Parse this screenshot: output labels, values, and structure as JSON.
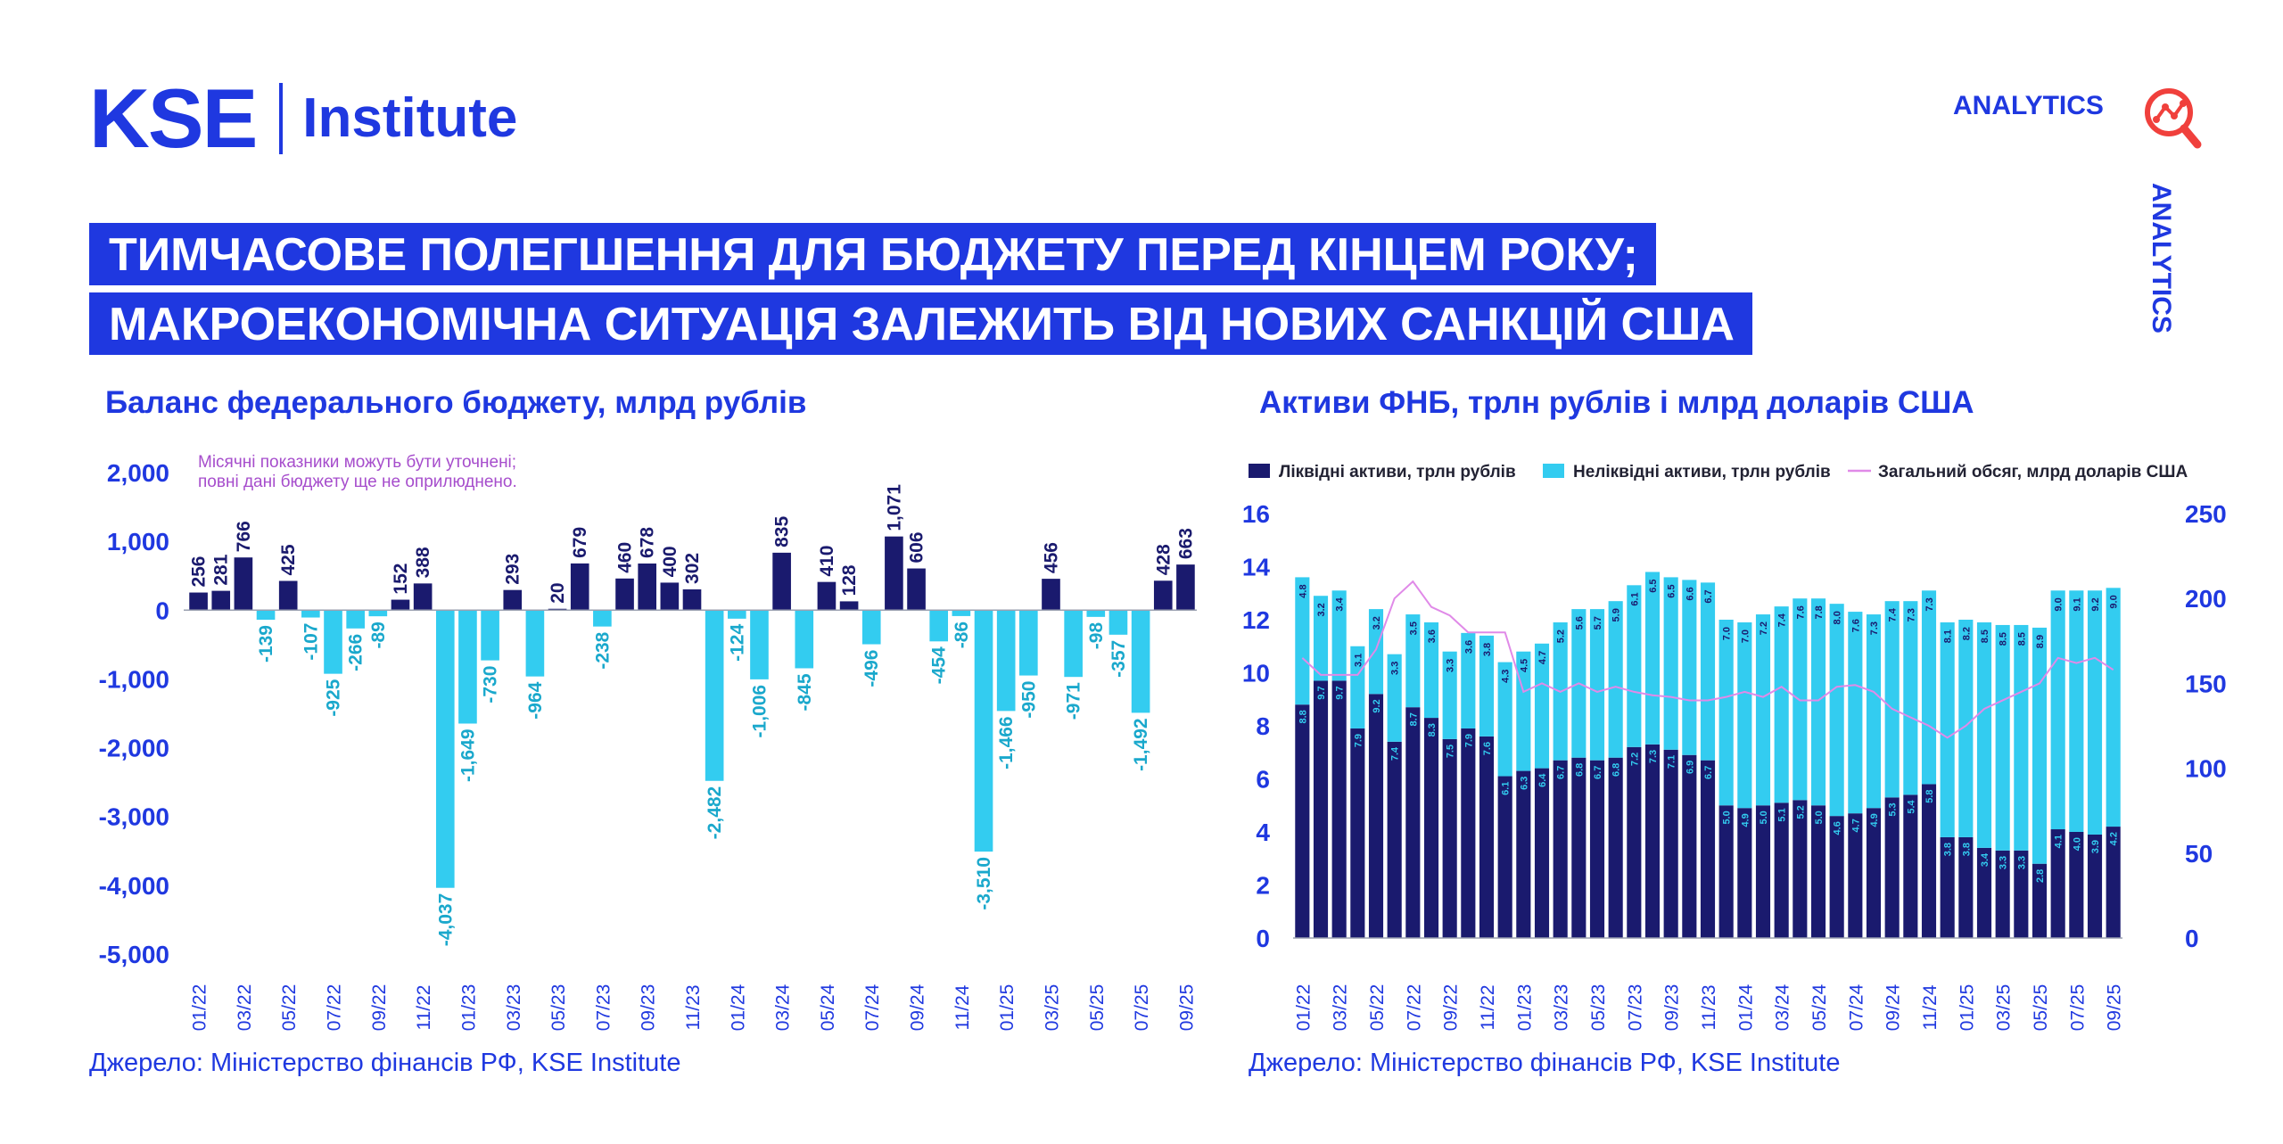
{
  "header": {
    "logo_kse": "KSE",
    "logo_institute": "Institute",
    "analytics_label": "ANALYTICS",
    "analytics_vertical": "ANALYTICS",
    "analytics_icon": "analytics-magnifier-icon",
    "title_line1": "ТИМЧАСОВЕ ПОЛЕГШЕННЯ ДЛЯ БЮДЖЕТУ ПЕРЕД КІНЦЕМ РОКУ;",
    "title_line2": "МАКРОЕКОНОМІЧНА СИТУАЦІЯ ЗАЛЕЖИТЬ ВІД НОВИХ САНКЦІЙ США"
  },
  "colors": {
    "brand_blue": "#1f38e0",
    "navy": "#1a1a6e",
    "cyan": "#33ccf0",
    "pink_line": "#e08ae8",
    "note_purple": "#a64dcc"
  },
  "left": {
    "title": "Баланс федерального бюджету, млрд рублів",
    "note_line1": "Місячні показники можуть бути уточнені;",
    "note_line2": "повні дані бюджету ще не оприлюднено.",
    "source": "Джерело: Міністерство фінансів РФ, KSE Institute"
  },
  "right": {
    "title": "Активи ФНБ, трлн рублів і млрд доларів США",
    "source": "Джерело: Міністерство фінансів РФ, KSE Institute",
    "legend": [
      {
        "name": "Ліквідні активи, трлн рублів",
        "color": "#1a1a6e",
        "kind": "bar"
      },
      {
        "name": "Неліквідні активи, трлн рублів",
        "color": "#33ccf0",
        "kind": "bar"
      },
      {
        "name": "Загальний обсяг, млрд доларів США",
        "color": "#e08ae8",
        "kind": "line"
      }
    ]
  },
  "chart_data": [
    {
      "type": "bar",
      "title": "Баланс федерального бюджету, млрд рублів",
      "ylim": [
        -5000,
        2000
      ],
      "yticks": [
        2000,
        1000,
        0,
        -1000,
        -2000,
        -3000,
        -4000,
        -5000
      ],
      "ytick_labels": [
        "2,000",
        "1,000",
        "0",
        "-1,000",
        "-2,000",
        "-3,000",
        "-4,000",
        "-5,000"
      ],
      "x_tick_labels": [
        "01/22",
        "03/22",
        "05/22",
        "07/22",
        "09/22",
        "11/22",
        "01/23",
        "03/23",
        "05/23",
        "07/23",
        "09/23",
        "11/23",
        "01/24",
        "03/24",
        "05/24",
        "07/24",
        "09/24",
        "11/24",
        "01/25",
        "03/25",
        "05/25",
        "07/25",
        "09/25"
      ],
      "x_tick_every": 2,
      "values": [
        256,
        281,
        766,
        -139,
        425,
        -107,
        -925,
        -266,
        -89,
        152,
        388,
        -4037,
        -1649,
        -730,
        293,
        -964,
        20,
        679,
        -238,
        460,
        678,
        400,
        302,
        -2482,
        -124,
        -1006,
        835,
        -845,
        410,
        128,
        -496,
        1071,
        606,
        -454,
        -86,
        -3510,
        -1466,
        -950,
        456,
        -971,
        -98,
        -357,
        -1492,
        428,
        663
      ],
      "labels": [
        "256",
        "281",
        "766",
        "-139",
        "425",
        "-107",
        "-925",
        "-266",
        "-89",
        "152",
        "388",
        "-4,037",
        "-1,649",
        "-730",
        "293",
        "-964",
        "20",
        "679",
        "-238",
        "460",
        "678",
        "400",
        "302",
        "-2,482",
        "-124",
        "-1,006",
        "835",
        "-845",
        "410",
        "128",
        "-496",
        "1,071",
        "606",
        "-454",
        "-86",
        "-3,510",
        "-1,466",
        "-950",
        "456",
        "-971",
        "-98",
        "-357",
        "-1,492",
        "428",
        "663"
      ],
      "positive_color": "#1a1a6e",
      "negative_color": "#33ccf0",
      "grid": false
    },
    {
      "type": "bar",
      "stacked": true,
      "title": "Активи ФНБ, трлн рублів і млрд доларів США",
      "ylim": [
        0,
        16
      ],
      "yticks": [
        0,
        2,
        4,
        6,
        8,
        10,
        12,
        14,
        16
      ],
      "y2lim": [
        0,
        250
      ],
      "y2ticks": [
        0,
        50,
        100,
        150,
        200,
        250
      ],
      "x_tick_labels": [
        "01/22",
        "03/22",
        "05/22",
        "07/22",
        "09/22",
        "11/22",
        "01/23",
        "03/23",
        "05/23",
        "07/23",
        "09/23",
        "11/23",
        "01/24",
        "03/24",
        "05/24",
        "07/24",
        "09/24",
        "11/24",
        "01/25",
        "03/25",
        "05/25",
        "07/25",
        "09/25"
      ],
      "x_tick_every": 2,
      "series": [
        {
          "name": "Ліквідні активи, трлн рублів",
          "color": "#1a1a6e",
          "values": [
            8.8,
            9.7,
            9.7,
            7.9,
            9.2,
            7.4,
            8.7,
            8.3,
            7.5,
            7.9,
            7.6,
            6.1,
            6.3,
            6.4,
            6.7,
            6.8,
            6.7,
            6.8,
            7.2,
            7.3,
            7.1,
            6.9,
            6.7,
            5.0,
            4.9,
            5.0,
            5.1,
            5.2,
            5.0,
            4.6,
            4.7,
            4.9,
            5.3,
            5.4,
            5.8,
            3.8,
            3.8,
            3.4,
            3.3,
            3.3,
            2.8,
            4.1,
            4.0,
            3.9,
            4.2
          ]
        },
        {
          "name": "Неліквідні активи, трлн рублів",
          "color": "#33ccf0",
          "values": [
            4.8,
            3.2,
            3.4,
            3.1,
            3.2,
            3.3,
            3.5,
            3.6,
            3.3,
            3.6,
            3.8,
            4.3,
            4.5,
            4.7,
            5.2,
            5.6,
            5.7,
            5.9,
            6.1,
            6.5,
            6.5,
            6.6,
            6.7,
            7.0,
            7.0,
            7.2,
            7.4,
            7.6,
            7.8,
            8.0,
            7.6,
            7.3,
            7.4,
            7.3,
            7.3,
            8.1,
            8.2,
            8.5,
            8.5,
            8.5,
            8.9,
            9.0,
            9.1,
            9.2,
            9.0
          ]
        },
        {
          "name": "Загальний обсяг, млрд доларів США",
          "color": "#e08ae8",
          "axis": "right",
          "values": [
            165,
            155,
            155,
            155,
            170,
            200,
            210,
            195,
            190,
            180,
            180,
            180,
            145,
            150,
            145,
            150,
            145,
            148,
            145,
            143,
            142,
            140,
            140,
            142,
            145,
            142,
            148,
            140,
            140,
            148,
            149,
            145,
            135,
            130,
            125,
            118,
            125,
            135,
            140,
            145,
            150,
            165,
            162,
            165,
            158
          ]
        }
      ],
      "legend_position": "top",
      "grid": false
    }
  ]
}
